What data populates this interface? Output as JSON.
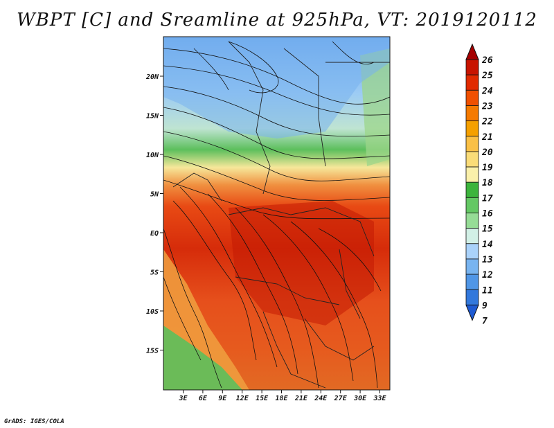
{
  "title": "WBPT [C] and Sreamline at 925hPa, VT: 2019120112",
  "credit": "GrADS: IGES/COLA",
  "map": {
    "lat_ticks": [
      "20N",
      "15N",
      "10N",
      "5N",
      "EQ",
      "5S",
      "10S",
      "15S"
    ],
    "lon_ticks": [
      "3E",
      "6E",
      "9E",
      "12E",
      "15E",
      "18E",
      "21E",
      "24E",
      "27E",
      "30E",
      "33E"
    ]
  },
  "colorbar": {
    "levels": [
      "26",
      "25",
      "24",
      "23",
      "22",
      "21",
      "20",
      "19",
      "18",
      "17",
      "16",
      "15",
      "14",
      "13",
      "12",
      "11",
      "9",
      "7"
    ],
    "colors": [
      "#a50000",
      "#c81400",
      "#e12a00",
      "#f05000",
      "#f57a00",
      "#f5a000",
      "#fac046",
      "#fadc78",
      "#faf0aa",
      "#3cb43c",
      "#64c864",
      "#96dc96",
      "#d2f0e6",
      "#aad2fa",
      "#78b4f0",
      "#5096e6",
      "#3278dc",
      "#1e5ad2"
    ]
  }
}
